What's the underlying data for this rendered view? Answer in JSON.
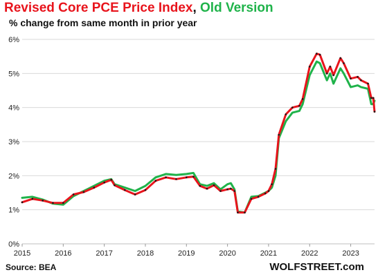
{
  "header": {
    "title_part1": "Revised Core PCE Price Index",
    "title_sep": ", ",
    "title_part2": "Old Version",
    "subtitle": "% change from same month in prior year"
  },
  "footer": {
    "source": "Source: BEA",
    "brand": "WOLFSTREET.com"
  },
  "colors": {
    "revised": "#e8141c",
    "revised_marker": "#1a1a1a",
    "old": "#1fb34a",
    "title_revised": "#e8141c",
    "title_old": "#1fb34a",
    "grid": "#d9d9d9"
  },
  "chart_data": {
    "type": "line",
    "xlim": [
      2015.0,
      2023.58
    ],
    "ylim": [
      0,
      6
    ],
    "x_ticks": [
      {
        "value": 2015,
        "label": "2015"
      },
      {
        "value": 2016,
        "label": "2016"
      },
      {
        "value": 2017,
        "label": "2017"
      },
      {
        "value": 2018,
        "label": "2018"
      },
      {
        "value": 2019,
        "label": "2019"
      },
      {
        "value": 2020,
        "label": "2020"
      },
      {
        "value": 2021,
        "label": "2021"
      },
      {
        "value": 2022,
        "label": "2022"
      },
      {
        "value": 2023,
        "label": "2023"
      }
    ],
    "y_ticks": [
      {
        "value": 0,
        "label": "0%"
      },
      {
        "value": 1,
        "label": "1%"
      },
      {
        "value": 2,
        "label": "2%"
      },
      {
        "value": 3,
        "label": "3%"
      },
      {
        "value": 4,
        "label": "4%"
      },
      {
        "value": 5,
        "label": "5%"
      },
      {
        "value": 6,
        "label": "6%"
      }
    ],
    "grid": "horizontal",
    "series": [
      {
        "name": "Revised Core PCE Price Index",
        "color": "#e8141c",
        "markers": true,
        "points": [
          [
            2015.0,
            1.22
          ],
          [
            2015.25,
            1.32
          ],
          [
            2015.5,
            1.27
          ],
          [
            2015.75,
            1.2
          ],
          [
            2016.0,
            1.2
          ],
          [
            2016.25,
            1.45
          ],
          [
            2016.5,
            1.52
          ],
          [
            2016.75,
            1.65
          ],
          [
            2017.0,
            1.8
          ],
          [
            2017.17,
            1.88
          ],
          [
            2017.25,
            1.72
          ],
          [
            2017.5,
            1.58
          ],
          [
            2017.75,
            1.45
          ],
          [
            2018.0,
            1.58
          ],
          [
            2018.25,
            1.85
          ],
          [
            2018.5,
            1.95
          ],
          [
            2018.75,
            1.9
          ],
          [
            2019.0,
            1.95
          ],
          [
            2019.17,
            1.97
          ],
          [
            2019.33,
            1.7
          ],
          [
            2019.5,
            1.62
          ],
          [
            2019.67,
            1.72
          ],
          [
            2019.83,
            1.55
          ],
          [
            2020.0,
            1.6
          ],
          [
            2020.08,
            1.62
          ],
          [
            2020.17,
            1.55
          ],
          [
            2020.25,
            0.92
          ],
          [
            2020.42,
            0.92
          ],
          [
            2020.58,
            1.32
          ],
          [
            2020.75,
            1.38
          ],
          [
            2020.92,
            1.48
          ],
          [
            2021.0,
            1.55
          ],
          [
            2021.08,
            1.75
          ],
          [
            2021.17,
            2.2
          ],
          [
            2021.25,
            3.2
          ],
          [
            2021.42,
            3.8
          ],
          [
            2021.58,
            4.0
          ],
          [
            2021.75,
            4.05
          ],
          [
            2021.83,
            4.25
          ],
          [
            2022.0,
            5.2
          ],
          [
            2022.17,
            5.58
          ],
          [
            2022.25,
            5.55
          ],
          [
            2022.42,
            5.0
          ],
          [
            2022.5,
            5.2
          ],
          [
            2022.58,
            4.95
          ],
          [
            2022.75,
            5.45
          ],
          [
            2022.83,
            5.3
          ],
          [
            2023.0,
            4.85
          ],
          [
            2023.17,
            4.9
          ],
          [
            2023.25,
            4.8
          ],
          [
            2023.42,
            4.7
          ],
          [
            2023.5,
            4.28
          ],
          [
            2023.55,
            4.28
          ],
          [
            2023.58,
            3.88
          ]
        ]
      },
      {
        "name": "Old Version",
        "color": "#1fb34a",
        "markers": false,
        "points": [
          [
            2015.0,
            1.35
          ],
          [
            2015.25,
            1.38
          ],
          [
            2015.5,
            1.3
          ],
          [
            2015.75,
            1.18
          ],
          [
            2016.0,
            1.15
          ],
          [
            2016.25,
            1.4
          ],
          [
            2016.5,
            1.55
          ],
          [
            2016.75,
            1.7
          ],
          [
            2017.0,
            1.85
          ],
          [
            2017.17,
            1.9
          ],
          [
            2017.25,
            1.75
          ],
          [
            2017.5,
            1.65
          ],
          [
            2017.75,
            1.55
          ],
          [
            2018.0,
            1.7
          ],
          [
            2018.25,
            1.95
          ],
          [
            2018.5,
            2.05
          ],
          [
            2018.75,
            2.02
          ],
          [
            2019.0,
            2.05
          ],
          [
            2019.17,
            2.08
          ],
          [
            2019.33,
            1.75
          ],
          [
            2019.5,
            1.7
          ],
          [
            2019.67,
            1.78
          ],
          [
            2019.83,
            1.6
          ],
          [
            2020.0,
            1.75
          ],
          [
            2020.08,
            1.78
          ],
          [
            2020.17,
            1.6
          ],
          [
            2020.25,
            0.95
          ],
          [
            2020.42,
            0.92
          ],
          [
            2020.58,
            1.38
          ],
          [
            2020.75,
            1.4
          ],
          [
            2020.92,
            1.5
          ],
          [
            2021.0,
            1.55
          ],
          [
            2021.08,
            1.65
          ],
          [
            2021.17,
            2.0
          ],
          [
            2021.25,
            3.1
          ],
          [
            2021.42,
            3.6
          ],
          [
            2021.58,
            3.85
          ],
          [
            2021.75,
            3.9
          ],
          [
            2021.83,
            4.1
          ],
          [
            2022.0,
            4.95
          ],
          [
            2022.17,
            5.35
          ],
          [
            2022.25,
            5.3
          ],
          [
            2022.42,
            4.8
          ],
          [
            2022.5,
            5.0
          ],
          [
            2022.58,
            4.7
          ],
          [
            2022.75,
            5.15
          ],
          [
            2022.83,
            5.0
          ],
          [
            2023.0,
            4.6
          ],
          [
            2023.17,
            4.65
          ],
          [
            2023.25,
            4.6
          ],
          [
            2023.42,
            4.55
          ],
          [
            2023.5,
            4.1
          ],
          [
            2023.55,
            4.1
          ],
          [
            2023.58,
            4.2
          ]
        ]
      }
    ]
  }
}
